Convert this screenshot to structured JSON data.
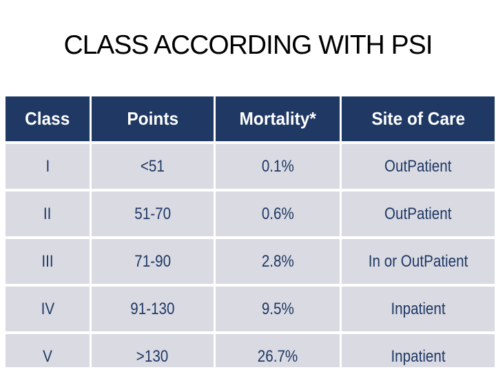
{
  "slide": {
    "title": "CLASS ACCORDING WITH PSI"
  },
  "table": {
    "columns": [
      "Class",
      "Points",
      "Mortality*",
      "Site of Care"
    ],
    "rows": [
      [
        "I",
        "<51",
        "0.1%",
        "OutPatient"
      ],
      [
        "II",
        "51-70",
        "0.6%",
        "OutPatient"
      ],
      [
        "III",
        "71-90",
        "2.8%",
        "In or OutPatient"
      ],
      [
        "IV",
        "91-130",
        "9.5%",
        "Inpatient"
      ],
      [
        "V",
        ">130",
        "26.7%",
        "Inpatient"
      ]
    ]
  },
  "colors": {
    "background": "#FFFFFF",
    "title_text": "#000000",
    "header_bg": "#1F3864",
    "header_text": "#FFFFFF",
    "row_bg": "#D9DAE2",
    "row_text": "#1F3864"
  }
}
